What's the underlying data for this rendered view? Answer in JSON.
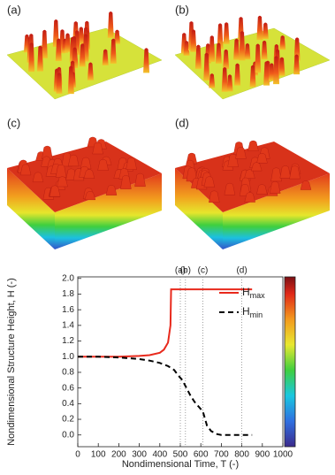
{
  "panels": {
    "labels": [
      "(a)",
      "(b)",
      "(c)",
      "(d)"
    ]
  },
  "chart_data": {
    "type": "line",
    "xlabel": "Nondimensional Time, T (-)",
    "ylabel": "Nondimensional Structure Height, H (-)",
    "xlim": [
      0,
      1000
    ],
    "ylim": [
      -0.15,
      2.02
    ],
    "xticks": [
      0,
      100,
      200,
      300,
      400,
      500,
      600,
      700,
      800,
      900,
      1000
    ],
    "yticks": [
      {
        "value": 0,
        "label": "0.0"
      },
      0.2,
      0.4,
      0.6,
      0.8,
      {
        "value": 1,
        "label": "1.0"
      },
      1.2,
      1.4,
      1.6,
      1.8,
      {
        "value": 2,
        "label": "2.0"
      }
    ],
    "legend": "upper right",
    "vlines": [
      {
        "value": 500,
        "label": "(a)"
      },
      {
        "value": 525,
        "label": "(b)"
      },
      {
        "value": 610,
        "label": "(c)"
      },
      {
        "value": 800,
        "label": "(d)"
      }
    ],
    "series": [
      {
        "name": "Hmax",
        "color": "#e8291c",
        "dash": false,
        "x": [
          0,
          100,
          200,
          300,
          350,
          400,
          420,
          440,
          452,
          455,
          500,
          600,
          700,
          800,
          850
        ],
        "values": [
          1,
          1,
          1,
          1.01,
          1.02,
          1.05,
          1.09,
          1.18,
          1.4,
          1.86,
          1.86,
          1.86,
          1.86,
          1.86,
          1.86
        ]
      },
      {
        "name": "Hmin",
        "color": "#000000",
        "dash": true,
        "x": [
          0,
          100,
          200,
          300,
          350,
          400,
          440,
          470,
          490,
          510,
          530,
          550,
          570,
          590,
          610,
          630,
          650,
          680,
          700,
          800,
          850
        ],
        "values": [
          1,
          1,
          0.99,
          0.97,
          0.95,
          0.92,
          0.88,
          0.83,
          0.76,
          0.7,
          0.6,
          0.5,
          0.42,
          0.36,
          0.3,
          0.12,
          0.05,
          0.01,
          0,
          0,
          0
        ]
      }
    ]
  }
}
